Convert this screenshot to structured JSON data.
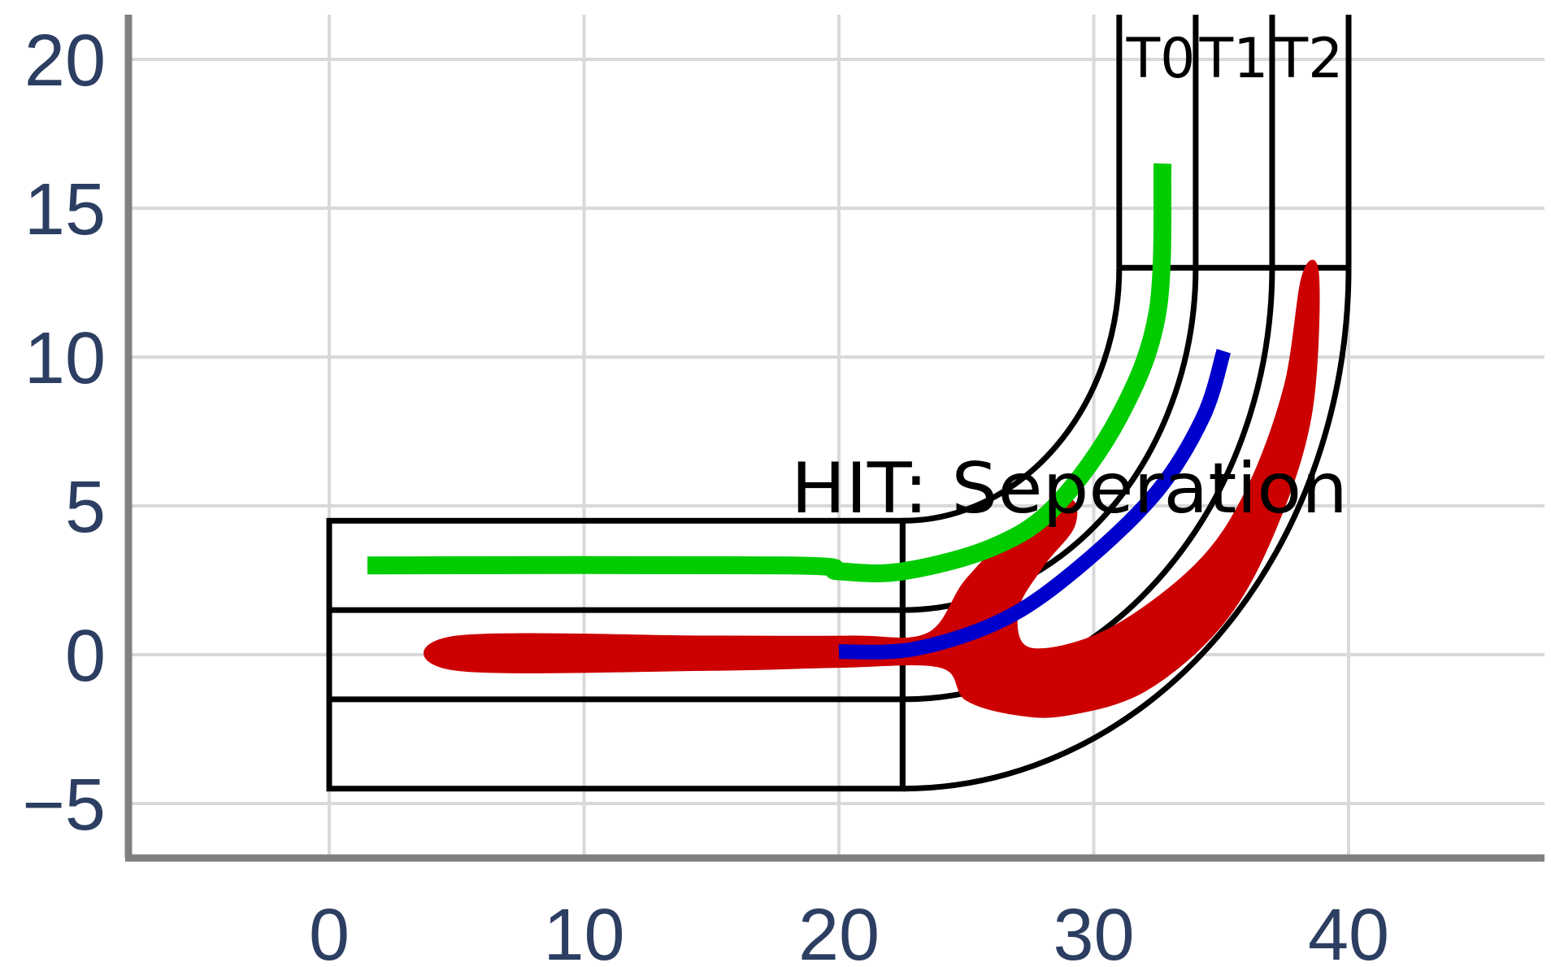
{
  "chart_data": {
    "type": "diagram",
    "x_ticks": [
      "0",
      "10",
      "20",
      "30",
      "40"
    ],
    "y_ticks": [
      "20",
      "15",
      "10",
      "5",
      "0",
      "−5"
    ],
    "xlim": [
      -8,
      48
    ],
    "ylim": [
      -7,
      21.5
    ],
    "grid": true,
    "annotations": {
      "channels": [
        "T0",
        "T1",
        "T2"
      ],
      "hit_label": "HIT: Seperation"
    },
    "geometry": {
      "straight_x": [
        0,
        22.5
      ],
      "bend_center": [
        22.5,
        13
      ],
      "channel_edges_y": [
        4.5,
        1.5,
        -1.5,
        -4.5
      ],
      "outlet_edges_x": [
        31,
        34,
        37,
        40
      ],
      "outlet_top_y": 21.5
    },
    "flows": [
      {
        "color": "#00cc00",
        "points": [
          [
            1.5,
            3
          ],
          [
            18,
            3
          ],
          [
            20,
            2.8
          ],
          [
            22.5,
            2.8
          ],
          [
            26,
            3.6
          ],
          [
            28.5,
            5
          ],
          [
            31,
            8
          ],
          [
            32.5,
            11.5
          ],
          [
            32.7,
            16.5
          ]
        ]
      },
      {
        "color": "#0000cc",
        "points": [
          [
            20,
            0.1
          ],
          [
            23,
            0.2
          ],
          [
            26.5,
            1.2
          ],
          [
            29.5,
            3
          ],
          [
            32.5,
            5.5
          ],
          [
            34.3,
            8
          ],
          [
            35.1,
            10.2
          ]
        ]
      },
      {
        "color": "#cc0000",
        "outline": [
          [
            5,
            0.6
          ],
          [
            15,
            0.6
          ],
          [
            20.5,
            0.6
          ],
          [
            23.5,
            0.7
          ],
          [
            25,
            2.5
          ],
          [
            27,
            4.2
          ],
          [
            29,
            5.2
          ],
          [
            29.2,
            4.3
          ],
          [
            28,
            3
          ],
          [
            27,
            1.5
          ],
          [
            27.5,
            0.2
          ],
          [
            30.5,
            0.8
          ],
          [
            34,
            3
          ],
          [
            36,
            5.5
          ],
          [
            37.5,
            9
          ],
          [
            38.2,
            12.7
          ],
          [
            38.8,
            12.7
          ],
          [
            38.5,
            8
          ],
          [
            37,
            4
          ],
          [
            35,
            1
          ],
          [
            32,
            -1.2
          ],
          [
            29,
            -2
          ],
          [
            27,
            -2
          ],
          [
            25,
            -1.5
          ],
          [
            24,
            -0.4
          ],
          [
            20,
            -0.4
          ],
          [
            15,
            -0.5
          ],
          [
            5,
            -0.5
          ]
        ]
      }
    ]
  }
}
